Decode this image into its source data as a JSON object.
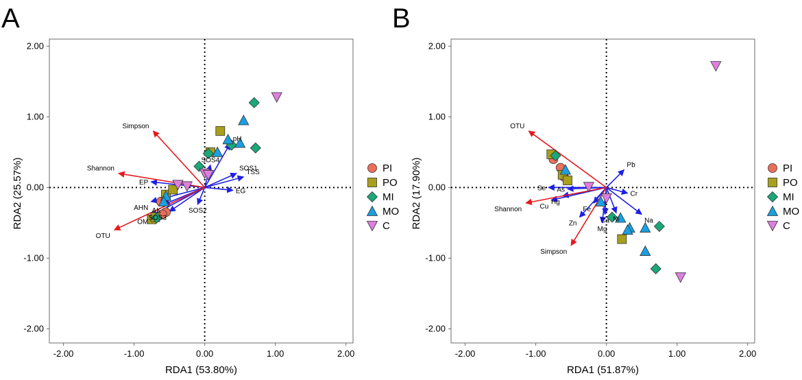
{
  "chart_data": [
    {
      "type": "scatter",
      "panel": "A",
      "xlabel": "RDA1 (53.80%)",
      "ylabel": "RDA2 (25.57%)",
      "xlim": [
        -2.2,
        2.1
      ],
      "ylim": [
        -2.2,
        2.1
      ],
      "xticks": [
        "-2.00",
        "-1.00",
        "0.00",
        "1.00",
        "2.00"
      ],
      "yticks": [
        "2.00",
        "1.00",
        "0.00",
        "-1.00",
        "-2.00"
      ],
      "response_vectors": [
        {
          "label": "Simpson",
          "x": -0.73,
          "y": 0.8
        },
        {
          "label": "Shannon",
          "x": -1.22,
          "y": 0.2
        },
        {
          "label": "OTU",
          "x": -1.28,
          "y": -0.6
        }
      ],
      "explanatory_vectors": [
        {
          "label": "EP",
          "x": -0.76,
          "y": 0.08
        },
        {
          "label": "AHN",
          "x": -0.76,
          "y": -0.2
        },
        {
          "label": "OM",
          "x": -0.76,
          "y": -0.4
        },
        {
          "label": "AK",
          "x": -0.58,
          "y": -0.24
        },
        {
          "label": "SOS3",
          "x": -0.5,
          "y": -0.34
        },
        {
          "label": "SOS2",
          "x": -0.1,
          "y": -0.24
        },
        {
          "label": "SOS4",
          "x": 0.08,
          "y": 0.32
        },
        {
          "label": "SOS1",
          "x": 0.45,
          "y": 0.2
        },
        {
          "label": "TSS",
          "x": 0.55,
          "y": 0.15
        },
        {
          "label": "EG",
          "x": 0.4,
          "y": -0.04
        },
        {
          "label": "pH",
          "x": 0.36,
          "y": 0.62
        }
      ],
      "series": [
        {
          "name": "PI",
          "points": [
            [
              -0.55,
              -0.35
            ],
            [
              -0.6,
              -0.38
            ],
            [
              -0.62,
              -0.2
            ]
          ]
        },
        {
          "name": "PO",
          "points": [
            [
              -0.75,
              -0.45
            ],
            [
              -0.7,
              -0.42
            ],
            [
              -0.55,
              -0.1
            ],
            [
              -0.45,
              -0.03
            ],
            [
              0.22,
              0.8
            ],
            [
              0.08,
              0.5
            ]
          ]
        },
        {
          "name": "MI",
          "points": [
            [
              -0.08,
              0.3
            ],
            [
              0.7,
              1.2
            ],
            [
              0.72,
              0.56
            ],
            [
              0.38,
              0.6
            ],
            [
              -0.68,
              -0.43
            ],
            [
              0.05,
              0.48
            ]
          ]
        },
        {
          "name": "MO",
          "points": [
            [
              0.55,
              0.95
            ],
            [
              0.5,
              0.63
            ],
            [
              0.33,
              0.68
            ],
            [
              0.18,
              0.5
            ],
            [
              -0.55,
              -0.12
            ],
            [
              -0.58,
              -0.2
            ]
          ]
        },
        {
          "name": "C",
          "points": [
            [
              1.02,
              1.28
            ],
            [
              0.0,
              0.2
            ],
            [
              -0.25,
              0.02
            ],
            [
              -0.38,
              0.04
            ],
            [
              0.05,
              0.18
            ]
          ]
        }
      ],
      "legend": {
        "position": "right",
        "entries": [
          "PI",
          "PO",
          "MI",
          "MO",
          "C"
        ]
      }
    },
    {
      "type": "scatter",
      "panel": "B",
      "xlabel": "RDA1 (51.87%)",
      "ylabel": "RDA2 (17.90%)",
      "xlim": [
        -2.2,
        2.1
      ],
      "ylim": [
        -2.2,
        2.1
      ],
      "xticks": [
        "-2.00",
        "-1.00",
        "0.00",
        "1.00",
        "2.00"
      ],
      "yticks": [
        "2.00",
        "1.00",
        "0.00",
        "-1.00",
        "-2.00"
      ],
      "response_vectors": [
        {
          "label": "OTU",
          "x": -1.1,
          "y": 0.8
        },
        {
          "label": "Shannon",
          "x": -1.14,
          "y": -0.22
        },
        {
          "label": "Simpson",
          "x": -0.5,
          "y": -0.82
        }
      ],
      "explanatory_vectors": [
        {
          "label": "Se",
          "x": -0.82,
          "y": 0.0
        },
        {
          "label": "As",
          "x": -0.55,
          "y": -0.02
        },
        {
          "label": "Hg",
          "x": -0.62,
          "y": -0.12
        },
        {
          "label": "Cu",
          "x": -0.78,
          "y": -0.18
        },
        {
          "label": "Fe",
          "x": -0.18,
          "y": -0.22
        },
        {
          "label": "Zn",
          "x": -0.38,
          "y": -0.42
        },
        {
          "label": "Mg",
          "x": -0.06,
          "y": -0.5
        },
        {
          "label": "Ca",
          "x": -0.02,
          "y": -0.38
        },
        {
          "label": "Ni",
          "x": 0.14,
          "y": -0.36
        },
        {
          "label": "Na",
          "x": 0.5,
          "y": -0.38
        },
        {
          "label": "Cr",
          "x": 0.3,
          "y": -0.08
        },
        {
          "label": "Pb",
          "x": 0.25,
          "y": 0.25
        }
      ],
      "series": [
        {
          "name": "PI",
          "points": [
            [
              -0.75,
              0.4
            ],
            [
              -0.65,
              0.28
            ],
            [
              -0.6,
              0.15
            ]
          ]
        },
        {
          "name": "PO",
          "points": [
            [
              -0.78,
              0.47
            ],
            [
              -0.62,
              0.18
            ],
            [
              -0.55,
              0.1
            ],
            [
              0.22,
              -0.73
            ]
          ]
        },
        {
          "name": "MI",
          "points": [
            [
              -0.72,
              0.45
            ],
            [
              0.75,
              -0.55
            ],
            [
              0.7,
              -1.15
            ],
            [
              0.08,
              -0.42
            ]
          ]
        },
        {
          "name": "MO",
          "points": [
            [
              -0.58,
              0.25
            ],
            [
              0.55,
              -0.57
            ],
            [
              0.55,
              -0.9
            ],
            [
              0.33,
              -0.57
            ],
            [
              0.3,
              -0.6
            ],
            [
              0.2,
              -0.43
            ],
            [
              -0.08,
              -0.2
            ]
          ]
        },
        {
          "name": "C",
          "points": [
            [
              1.55,
              1.72
            ],
            [
              1.05,
              -1.27
            ],
            [
              -0.25,
              0.01
            ],
            [
              0.0,
              -0.15
            ]
          ]
        }
      ],
      "legend": {
        "position": "right",
        "entries": [
          "PI",
          "PO",
          "MI",
          "MO",
          "C"
        ]
      }
    }
  ],
  "colors": {
    "PI": "#ec6f5b",
    "PO": "#a8a01c",
    "MI": "#1aa87a",
    "MO": "#1b9fe0",
    "C": "#de7fde",
    "response_arrow": "#e41a1c",
    "explanatory_arrow": "#1f1fe6",
    "frame": "#6b6b6b"
  }
}
